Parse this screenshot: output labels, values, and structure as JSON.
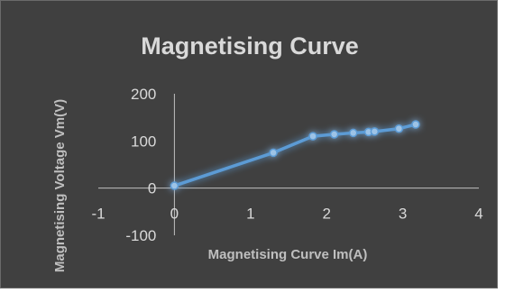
{
  "chart_data": {
    "type": "scatter",
    "title": "Magnetising Curve",
    "xlabel": "Magnetising Curve Im(A)",
    "ylabel": "Magnetising Voltage Vm(V)",
    "xlim": [
      -1,
      4
    ],
    "ylim": [
      -100,
      200
    ],
    "x_ticks": [
      -1,
      0,
      1,
      2,
      3,
      4
    ],
    "y_ticks": [
      -100,
      0,
      100,
      200
    ],
    "x": [
      0,
      1.3,
      1.82,
      2.1,
      2.35,
      2.55,
      2.63,
      2.95,
      3.17
    ],
    "y": [
      5,
      75,
      110,
      114,
      117,
      119,
      120,
      126,
      135
    ],
    "grid": false,
    "marker": "circle",
    "line": "straight",
    "colors": {
      "background": "#404040",
      "series": "#5b9bd5",
      "glow": "#2e75b6",
      "text": "#d9d9d9",
      "axis_title": "#bfbfbf"
    }
  }
}
